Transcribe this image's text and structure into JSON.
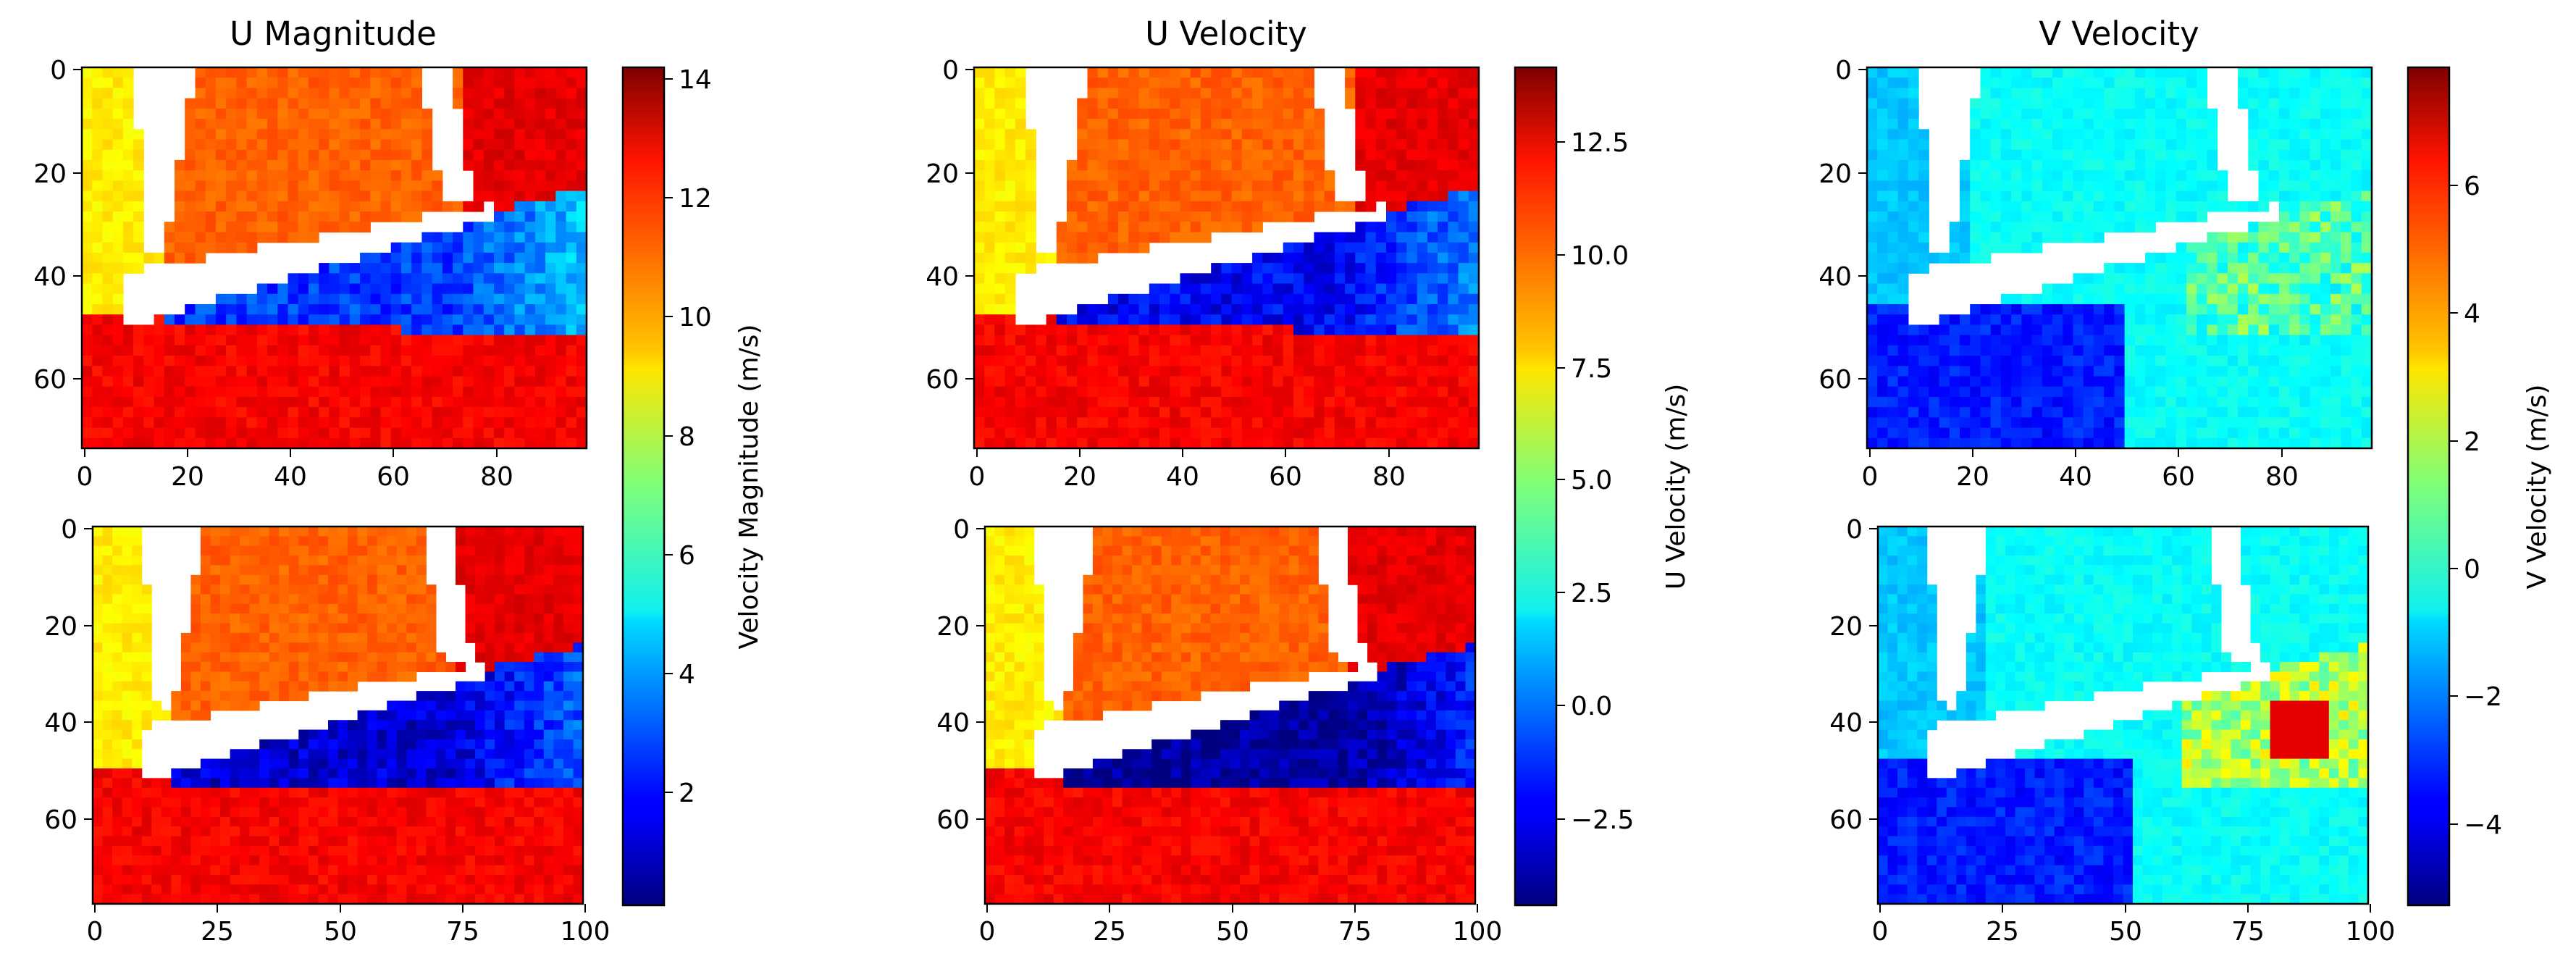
{
  "chart_data": [
    {
      "type": "heatmap",
      "title": "U Magnitude",
      "colormap": "jet",
      "colorbar_label": "Velocity Magnitude (m/s)",
      "colorbar_range": [
        0.1,
        14.2
      ],
      "colorbar_ticks": [
        "2",
        "4",
        "6",
        "8",
        "10",
        "12",
        "14"
      ],
      "panels": [
        {
          "xlim": [
            -0.5,
            97.5
          ],
          "ylim_inverted": [
            73.5,
            -0.5
          ],
          "xticks": [
            "0",
            "20",
            "40",
            "60",
            "80"
          ],
          "yticks": [
            "0",
            "20",
            "40",
            "60"
          ]
        },
        {
          "xlim": [
            -0.5,
            99.5
          ],
          "ylim_inverted": [
            77.5,
            -0.5
          ],
          "xticks": [
            "0",
            "25",
            "50",
            "75",
            "100"
          ],
          "yticks": [
            "0",
            "20",
            "40",
            "60"
          ]
        }
      ]
    },
    {
      "type": "heatmap",
      "title": "U Velocity",
      "colormap": "jet",
      "colorbar_label": "U Velocity (m/s)",
      "colorbar_range": [
        -4.5,
        14.2
      ],
      "colorbar_ticks": [
        "−2.5",
        "0.0",
        "2.5",
        "5.0",
        "7.5",
        "10.0",
        "12.5"
      ],
      "panels": [
        {
          "xlim": [
            -0.5,
            97.5
          ],
          "ylim_inverted": [
            73.5,
            -0.5
          ],
          "xticks": [
            "0",
            "20",
            "40",
            "60",
            "80"
          ],
          "yticks": [
            "0",
            "20",
            "40",
            "60"
          ]
        },
        {
          "xlim": [
            -0.5,
            99.5
          ],
          "ylim_inverted": [
            77.5,
            -0.5
          ],
          "xticks": [
            "0",
            "25",
            "50",
            "75",
            "100"
          ],
          "yticks": [
            "0",
            "20",
            "40",
            "60"
          ]
        }
      ]
    },
    {
      "type": "heatmap",
      "title": "V Velocity",
      "colormap": "jet",
      "colorbar_label": "V Velocity (m/s)",
      "colorbar_range": [
        -5.2,
        7.8
      ],
      "colorbar_ticks": [
        "−4",
        "−2",
        "0",
        "2",
        "4",
        "6"
      ],
      "panels": [
        {
          "xlim": [
            -0.5,
            97.5
          ],
          "ylim_inverted": [
            73.5,
            -0.5
          ],
          "xticks": [
            "0",
            "20",
            "40",
            "60",
            "80"
          ],
          "yticks": [
            "0",
            "20",
            "40",
            "60"
          ]
        },
        {
          "xlim": [
            -0.5,
            99.5
          ],
          "ylim_inverted": [
            77.5,
            -0.5
          ],
          "xticks": [
            "0",
            "25",
            "50",
            "75",
            "100"
          ],
          "yticks": [
            "0",
            "20",
            "40",
            "60"
          ]
        }
      ]
    }
  ]
}
